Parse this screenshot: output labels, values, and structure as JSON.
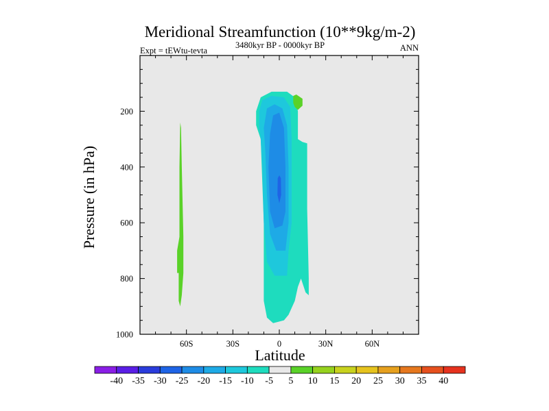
{
  "chart_data": {
    "type": "contour",
    "title": "Meridional Streamfunction (10**9kg/m-2)",
    "subtitle_left": "Expt = tEWtu-tevta",
    "subtitle_center": "3480kyr BP - 0000kyr BP",
    "subtitle_right": "ANN",
    "xlabel": "Latitude",
    "ylabel": "Pressure (in hPa)",
    "xlim": [
      -90,
      90
    ],
    "ylim": [
      1000,
      0
    ],
    "x_ticks": [
      -60,
      -30,
      0,
      30,
      60
    ],
    "x_tick_labels": [
      "60S",
      "30S",
      "0",
      "30N",
      "60N"
    ],
    "y_ticks": [
      200,
      400,
      600,
      800,
      1000
    ],
    "y_tick_labels": [
      "200",
      "400",
      "600",
      "800",
      "1000"
    ],
    "colorbar": {
      "labels": [
        "-40",
        "-35",
        "-30",
        "-25",
        "-20",
        "-15",
        "-10",
        "-5",
        "5",
        "10",
        "15",
        "20",
        "25",
        "30",
        "35",
        "40"
      ],
      "colors": [
        "#8a1ee6",
        "#5a1ee6",
        "#2a3cdc",
        "#1e64e6",
        "#1e8ce6",
        "#1eaae6",
        "#1ec8dc",
        "#1edcbe",
        "#e8e8e8",
        "#5ad228",
        "#96d21e",
        "#c8d21e",
        "#e6c31e",
        "#e6a01e",
        "#e6781e",
        "#e6501e",
        "#e6321e"
      ]
    },
    "regions": [
      {
        "level": "-5",
        "color": "#1edcbe",
        "points": [
          [
            -15,
            200
          ],
          [
            -12,
            150
          ],
          [
            -5,
            130
          ],
          [
            5,
            130
          ],
          [
            10,
            150
          ],
          [
            12,
            200
          ],
          [
            12,
            300
          ],
          [
            15,
            310
          ],
          [
            18,
            315
          ],
          [
            18,
            550
          ],
          [
            19,
            800
          ],
          [
            19,
            860
          ],
          [
            17,
            850
          ],
          [
            14,
            800
          ],
          [
            12,
            830
          ],
          [
            10,
            880
          ],
          [
            6,
            930
          ],
          [
            3,
            950
          ],
          [
            -4,
            960
          ],
          [
            -8,
            940
          ],
          [
            -10,
            880
          ],
          [
            -10,
            600
          ],
          [
            -12,
            300
          ],
          [
            -15,
            250
          ]
        ]
      },
      {
        "level": "-10",
        "color": "#1ec8dc",
        "points": [
          [
            -13,
            200
          ],
          [
            -11,
            160
          ],
          [
            -5,
            145
          ],
          [
            3,
            150
          ],
          [
            7,
            185
          ],
          [
            8,
            300
          ],
          [
            8,
            600
          ],
          [
            6,
            700
          ],
          [
            5,
            790
          ],
          [
            -3,
            790
          ],
          [
            -8,
            740
          ],
          [
            -10,
            600
          ],
          [
            -11,
            400
          ],
          [
            -12,
            300
          ],
          [
            -13,
            260
          ]
        ]
      },
      {
        "level": "-15",
        "color": "#1eaae6",
        "points": [
          [
            -10,
            260
          ],
          [
            -8,
            190
          ],
          [
            -3,
            175
          ],
          [
            2,
            190
          ],
          [
            5,
            250
          ],
          [
            6,
            400
          ],
          [
            6,
            600
          ],
          [
            4,
            700
          ],
          [
            -2,
            700
          ],
          [
            -6,
            640
          ],
          [
            -8,
            500
          ],
          [
            -9,
            350
          ]
        ]
      },
      {
        "level": "-20",
        "color": "#1e8ce6",
        "points": [
          [
            -6,
            280
          ],
          [
            -4,
            215
          ],
          [
            0,
            205
          ],
          [
            3,
            260
          ],
          [
            4,
            400
          ],
          [
            4,
            560
          ],
          [
            2,
            610
          ],
          [
            -3,
            620
          ],
          [
            -6,
            560
          ],
          [
            -7,
            400
          ]
        ]
      },
      {
        "level": "-25",
        "color": "#1e64e6",
        "points": [
          [
            -1,
            440
          ],
          [
            0,
            430
          ],
          [
            1,
            440
          ],
          [
            1.2,
            500
          ],
          [
            0,
            530
          ],
          [
            -1.2,
            500
          ]
        ]
      },
      {
        "level": "5",
        "color": "#5ad228",
        "points": [
          [
            -65,
            880
          ],
          [
            -64,
            900
          ],
          [
            -63,
            860
          ],
          [
            -62,
            780
          ],
          [
            -62,
            650
          ],
          [
            -63,
            400
          ],
          [
            -63.5,
            260
          ],
          [
            -64,
            240
          ],
          [
            -64.5,
            400
          ],
          [
            -64.5,
            650
          ],
          [
            -66,
            700
          ],
          [
            -66,
            780
          ],
          [
            -65,
            780
          ]
        ]
      },
      {
        "level": "5",
        "color": "#5ad228",
        "points": [
          [
            9,
            145
          ],
          [
            11,
            140
          ],
          [
            15,
            155
          ],
          [
            15,
            180
          ],
          [
            12,
            195
          ],
          [
            10,
            185
          ],
          [
            9,
            170
          ]
        ]
      }
    ]
  }
}
